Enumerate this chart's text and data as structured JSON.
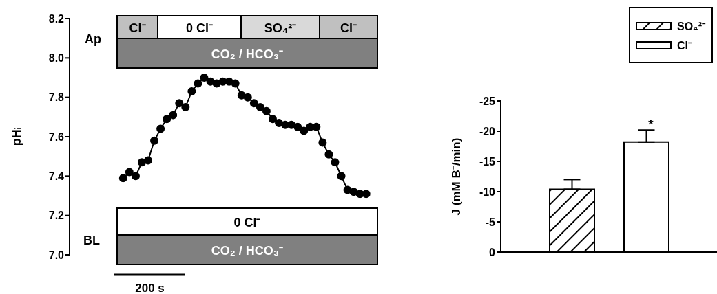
{
  "chart_data": [
    {
      "type": "line",
      "ylabel": "pHᵢ",
      "categories": [
        null,
        null,
        null,
        null,
        null,
        null,
        null,
        null,
        null,
        null,
        null,
        null,
        null,
        null,
        null,
        null,
        null,
        null,
        null,
        null,
        null,
        null,
        null,
        null,
        null,
        null,
        null,
        null,
        null,
        null,
        null,
        null,
        null,
        null,
        null,
        null,
        null,
        null,
        null,
        null
      ],
      "series": [
        {
          "color": "#000000",
          "values": [
            7.39,
            7.42,
            7.4,
            7.47,
            7.48,
            7.58,
            7.64,
            7.69,
            7.71,
            7.77,
            7.75,
            7.83,
            7.87,
            7.9,
            7.88,
            7.87,
            7.88,
            7.88,
            7.87,
            7.81,
            7.8,
            7.77,
            7.75,
            7.73,
            7.69,
            7.67,
            7.66,
            7.66,
            7.65,
            7.63,
            7.65,
            7.65,
            7.57,
            7.51,
            7.47,
            7.4,
            7.33,
            7.32,
            7.31,
            7.31
          ]
        }
      ],
      "ylim": [
        7.0,
        8.2
      ],
      "yticks": [
        {
          "value": 7.0,
          "label": "7.0"
        },
        7.2,
        7.4,
        7.6,
        7.8,
        {
          "value": 8.0,
          "label": "8.0"
        },
        8.2
      ],
      "tick_labels": "y",
      "grid": false,
      "marker": "circle",
      "line_style": "solid",
      "annotations": [
        "Ap",
        "Cl⁻",
        "0 Cl⁻",
        "SO₄²⁻",
        "Cl⁻",
        "CO₂ / HCO₃⁻",
        "BL",
        "0 Cl⁻",
        "CO₂ / HCO₃⁻",
        "200 s"
      ]
    },
    {
      "type": "bar",
      "ylabel": "J (mM B⁻/min)",
      "categories": [
        null
      ],
      "series": [
        {
          "name": "SO₄²⁻",
          "color": "#000000",
          "values": [
            -10.4
          ],
          "errors": [
            [
              -12.0,
              -10.4
            ]
          ]
        },
        {
          "name": "Cl⁻",
          "color": "#ffffff",
          "values": [
            -18.2
          ],
          "errors": [
            [
              -20.2,
              -18.2
            ]
          ]
        }
      ],
      "ylim": [
        0,
        -25
      ],
      "yticks": [
        0,
        -5,
        -10,
        -15,
        -20,
        -25
      ],
      "tick_labels": "y",
      "grid": false,
      "legend": "top right",
      "annotations": [
        "*"
      ]
    }
  ]
}
